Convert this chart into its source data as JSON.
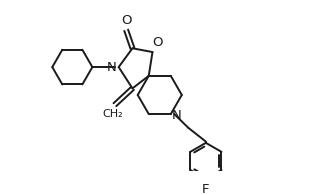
{
  "bg_color": "#ffffff",
  "line_color": "#1a1a1a",
  "lw": 1.4,
  "figsize": [
    3.1,
    1.95
  ],
  "dpi": 100,
  "xlim": [
    0,
    10.5
  ],
  "ylim": [
    0,
    6.8
  ]
}
